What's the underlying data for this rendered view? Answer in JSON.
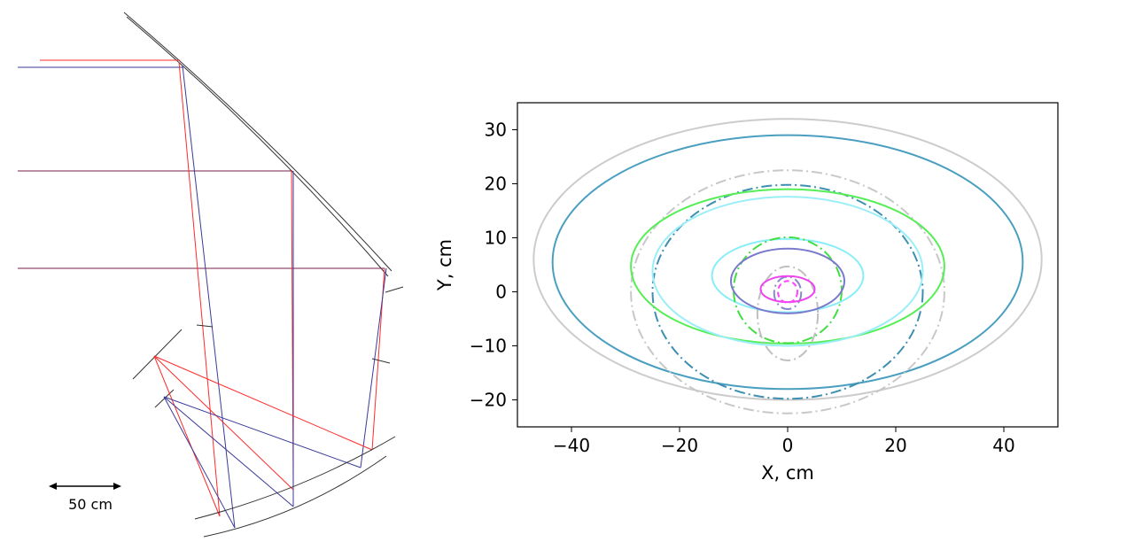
{
  "optics_diagram": {
    "scale_bar_label": "50 cm",
    "colors": {
      "ray_red": "#ff2a2a",
      "ray_blue": "#3a3a9a",
      "ray_purple": "#7a1f4a",
      "mirror": "#333333"
    }
  },
  "chart_data": {
    "type": "line",
    "xlabel": "X,  cm",
    "ylabel": "Y,  cm",
    "xlim": [
      -50,
      50
    ],
    "ylim": [
      -25,
      35
    ],
    "x_ticks": [
      -40,
      -20,
      0,
      20,
      40
    ],
    "y_ticks": [
      -20,
      -10,
      0,
      10,
      20,
      30
    ],
    "x_tick_labels": [
      "−40",
      "−20",
      "0",
      "20",
      "40"
    ],
    "y_tick_labels": [
      "−20",
      "−10",
      "0",
      "10",
      "20",
      "30"
    ],
    "grid": false,
    "legend": "none",
    "series": [
      {
        "shape": "ellipse",
        "cx": 0,
        "cy": 6,
        "rx": 47,
        "ry": 26,
        "color": "#cccccc",
        "style": "solid"
      },
      {
        "shape": "ellipse",
        "cx": 0,
        "cy": 5.5,
        "rx": 43.5,
        "ry": 23.5,
        "color": "#4a9fc0",
        "style": "solid"
      },
      {
        "shape": "ellipse",
        "cx": 0,
        "cy": 0,
        "rx": 29,
        "ry": 22.5,
        "color": "#c8c8c8",
        "style": "dashdot"
      },
      {
        "shape": "ellipse",
        "cx": 0,
        "cy": 0,
        "rx": 25,
        "ry": 19.8,
        "color": "#3e8fb0",
        "style": "dashdot"
      },
      {
        "shape": "ellipse",
        "cx": 0,
        "cy": 4.7,
        "rx": 29,
        "ry": 14.3,
        "color": "#55ee55",
        "style": "solid"
      },
      {
        "shape": "ellipse",
        "cx": 0,
        "cy": 3.8,
        "rx": 25,
        "ry": 13.8,
        "color": "#99eef8",
        "style": "solid"
      },
      {
        "shape": "ellipse",
        "cx": 0,
        "cy": 3,
        "rx": 14,
        "ry": 6.8,
        "color": "#88eef8",
        "style": "solid"
      },
      {
        "shape": "ellipse",
        "cx": 0,
        "cy": 0.3,
        "rx": 10,
        "ry": 9.8,
        "color": "#44dd44",
        "style": "dashdot"
      },
      {
        "shape": "ellipse",
        "cx": 0,
        "cy": -4,
        "rx": 5.6,
        "ry": 8.7,
        "color": "#bfbfbf",
        "style": "dashdot"
      },
      {
        "shape": "ellipse",
        "cx": 0,
        "cy": 2,
        "rx": 10.5,
        "ry": 6,
        "color": "#7a7acc",
        "style": "solid"
      },
      {
        "shape": "ellipse",
        "cx": 0,
        "cy": -0.2,
        "rx": 2.5,
        "ry": 3,
        "color": "#8888cc",
        "style": "dashdot"
      },
      {
        "shape": "ellipse",
        "cx": 0,
        "cy": 0.5,
        "rx": 5,
        "ry": 2.4,
        "color": "#ee44ee",
        "style": "solid"
      },
      {
        "shape": "ellipse",
        "cx": 0,
        "cy": 0,
        "rx": 1.8,
        "ry": 2,
        "color": "#ff44ff",
        "style": "dashed"
      }
    ]
  }
}
